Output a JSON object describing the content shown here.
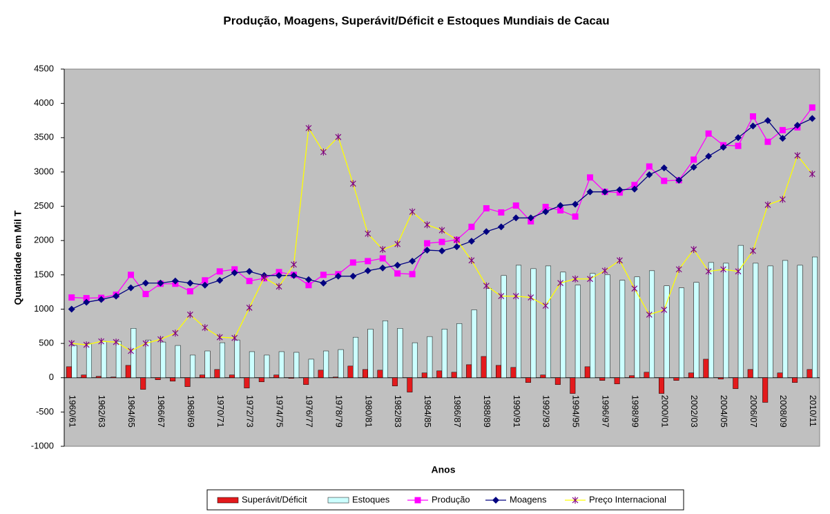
{
  "chart_data": {
    "type": "combo",
    "title": "Produção, Moagens, Superávit/Déficit e Estoques Mundiais de Cacau",
    "x_label": "Anos",
    "y_label": "Quantidade em Mil T",
    "categories": [
      "1960/61",
      null,
      "1962/63",
      null,
      "1964/65",
      null,
      "1966/67",
      null,
      "1968/69",
      null,
      "1970/71",
      null,
      "1972/73",
      null,
      "1974/75",
      null,
      "1976/77",
      null,
      "1978/79",
      null,
      "1980/81",
      null,
      "1982/83",
      null,
      "1984/85",
      null,
      "1986/87",
      null,
      "1988/89",
      null,
      "1990/91",
      null,
      "1992/93",
      null,
      "1994/95",
      null,
      "1996/97",
      null,
      "1998/99",
      null,
      "2000/01",
      null,
      "2002/03",
      null,
      "2004/05",
      null,
      "2006/07",
      null,
      "2008/09",
      null,
      "2010/11"
    ],
    "ylim": [
      -1000,
      4500
    ],
    "yticks": [
      -1000,
      -500,
      0,
      500,
      1000,
      1500,
      2000,
      2500,
      3000,
      3500,
      4000,
      4500
    ],
    "grid": false,
    "background": "#c0c0c0",
    "legend": "bottom",
    "series": [
      {
        "name": "Superávit/Déficit",
        "type": "bar",
        "color": "#e31a1c",
        "values": [
          160,
          40,
          20,
          10,
          180,
          -170,
          -30,
          -50,
          -130,
          40,
          120,
          40,
          -150,
          -60,
          40,
          -10,
          -100,
          110,
          10,
          170,
          120,
          110,
          -120,
          -210,
          70,
          100,
          80,
          190,
          310,
          180,
          150,
          -70,
          40,
          -100,
          -230,
          160,
          -40,
          -90,
          30,
          80,
          -230,
          -40,
          70,
          270,
          -20,
          -160,
          120,
          -360,
          70,
          -70,
          120
        ]
      },
      {
        "name": "Estoques",
        "type": "bar",
        "color": "#ccffff",
        "values": [
          470,
          500,
          530,
          530,
          720,
          550,
          520,
          470,
          330,
          390,
          510,
          550,
          380,
          330,
          380,
          370,
          270,
          390,
          410,
          590,
          710,
          830,
          720,
          510,
          600,
          710,
          790,
          990,
          1300,
          1490,
          1640,
          1590,
          1630,
          1540,
          1350,
          1520,
          1500,
          1420,
          1470,
          1560,
          1340,
          1310,
          1390,
          1680,
          1670,
          1930,
          1670,
          1630,
          1710,
          1640,
          1760
        ]
      },
      {
        "name": "Produção",
        "type": "line",
        "marker": "square",
        "color": "#ff00ff",
        "values": [
          1170,
          1160,
          1165,
          1210,
          1500,
          1220,
          1370,
          1370,
          1260,
          1420,
          1550,
          1580,
          1410,
          1450,
          1540,
          1500,
          1350,
          1500,
          1510,
          1680,
          1700,
          1740,
          1520,
          1510,
          1960,
          1980,
          2010,
          2200,
          2470,
          2410,
          2510,
          2280,
          2490,
          2440,
          2350,
          2920,
          2710,
          2700,
          2810,
          3080,
          2870,
          2880,
          3180,
          3560,
          3390,
          3380,
          3810,
          3440,
          3610,
          3650,
          3940
        ]
      },
      {
        "name": "Moagens",
        "type": "line",
        "marker": "diamond",
        "color": "#000080",
        "values": [
          1000,
          1100,
          1140,
          1190,
          1310,
          1380,
          1380,
          1410,
          1380,
          1350,
          1420,
          1530,
          1550,
          1490,
          1490,
          1490,
          1430,
          1380,
          1480,
          1480,
          1560,
          1600,
          1640,
          1700,
          1860,
          1850,
          1910,
          1990,
          2130,
          2200,
          2330,
          2330,
          2420,
          2510,
          2530,
          2710,
          2710,
          2740,
          2750,
          2960,
          3060,
          2880,
          3070,
          3230,
          3360,
          3500,
          3670,
          3750,
          3490,
          3680,
          3780
        ]
      },
      {
        "name": "Preço Internacional",
        "type": "line",
        "marker": "star",
        "color": "#ffff00",
        "marker_color": "#800080",
        "values": [
          500,
          480,
          530,
          520,
          390,
          500,
          560,
          650,
          920,
          730,
          590,
          580,
          1020,
          1460,
          1330,
          1650,
          3640,
          3290,
          3510,
          2830,
          2100,
          1870,
          1950,
          2420,
          2230,
          2150,
          2010,
          1710,
          1340,
          1190,
          1190,
          1170,
          1050,
          1380,
          1440,
          1440,
          1560,
          1710,
          1300,
          920,
          990,
          1580,
          1870,
          1550,
          1580,
          1550,
          1850,
          2520,
          2600,
          3240,
          2970
        ]
      }
    ]
  }
}
